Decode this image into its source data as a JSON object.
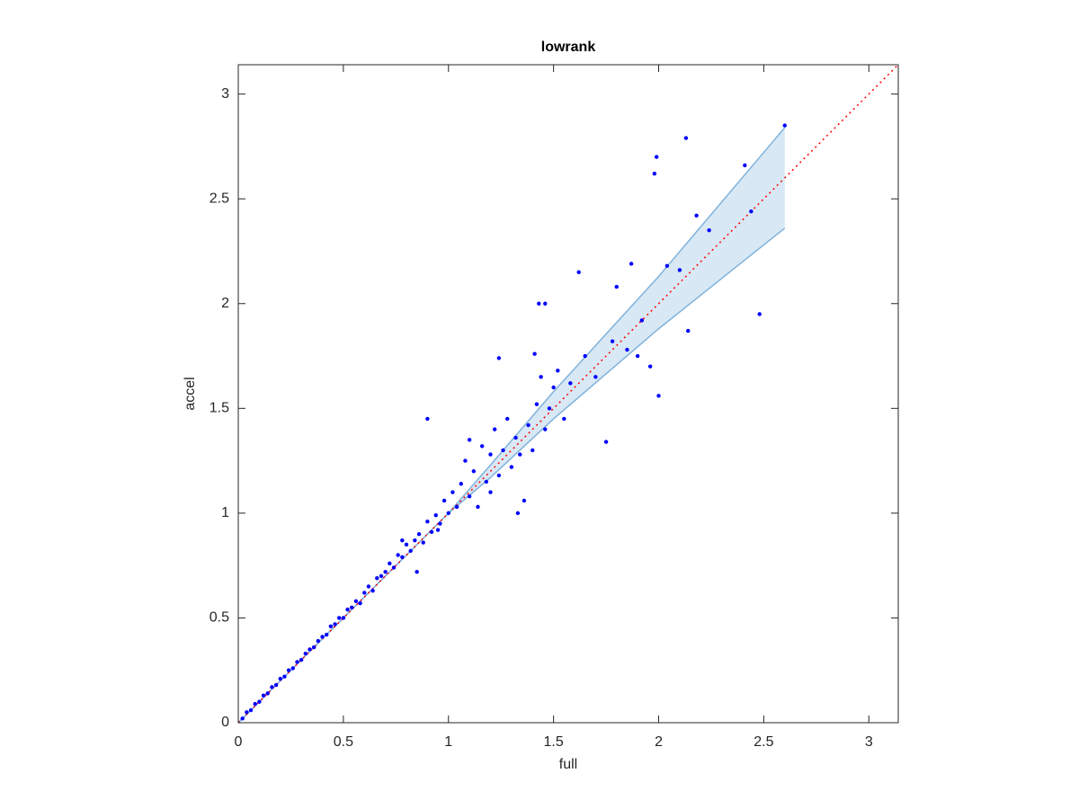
{
  "chart_data": {
    "type": "scatter",
    "title": "lowrank",
    "xlabel": "full",
    "ylabel": "accel",
    "xlim": [
      0,
      3.14
    ],
    "ylim": [
      0,
      3.14
    ],
    "xticks": [
      0,
      0.5,
      1,
      1.5,
      2,
      2.5,
      3
    ],
    "yticks": [
      0,
      0.5,
      1,
      1.5,
      2,
      2.5,
      3
    ],
    "color": "#0000ff",
    "x": [
      0.02,
      0.04,
      0.06,
      0.08,
      0.1,
      0.12,
      0.14,
      0.16,
      0.18,
      0.2,
      0.22,
      0.24,
      0.26,
      0.28,
      0.3,
      0.32,
      0.34,
      0.36,
      0.38,
      0.4,
      0.42,
      0.44,
      0.46,
      0.48,
      0.5,
      0.52,
      0.54,
      0.56,
      0.58,
      0.6,
      0.62,
      0.64,
      0.66,
      0.68,
      0.7,
      0.72,
      0.74,
      0.76,
      0.78,
      0.8,
      0.82,
      0.84,
      0.86,
      0.88,
      0.9,
      0.92,
      0.94,
      0.96,
      0.98,
      1.0,
      1.02,
      1.04,
      1.06,
      1.08,
      1.1,
      1.12,
      1.14,
      1.16,
      1.18,
      1.2,
      1.22,
      1.24,
      1.26,
      1.28,
      1.3,
      1.32,
      1.34,
      1.36,
      1.38,
      1.4,
      1.42,
      1.44,
      1.46,
      1.48,
      1.5,
      1.52,
      1.55,
      1.58,
      1.62,
      1.65,
      1.7,
      1.75,
      1.78,
      1.8,
      1.85,
      1.87,
      1.9,
      1.92,
      1.96,
      1.98,
      2.0,
      2.04,
      2.1,
      2.13,
      2.14,
      2.18,
      2.24,
      2.41,
      2.44,
      2.48,
      2.6,
      0.9,
      1.24,
      1.43,
      1.99,
      1.46,
      1.41,
      0.85,
      0.95,
      0.78,
      1.1,
      1.2,
      1.33
    ],
    "values": [
      0.02,
      0.05,
      0.06,
      0.09,
      0.1,
      0.13,
      0.14,
      0.17,
      0.18,
      0.21,
      0.22,
      0.25,
      0.26,
      0.29,
      0.3,
      0.33,
      0.35,
      0.36,
      0.39,
      0.41,
      0.42,
      0.46,
      0.47,
      0.5,
      0.5,
      0.54,
      0.55,
      0.58,
      0.57,
      0.62,
      0.65,
      0.63,
      0.69,
      0.7,
      0.72,
      0.76,
      0.74,
      0.8,
      0.79,
      0.85,
      0.82,
      0.87,
      0.9,
      0.86,
      0.96,
      0.91,
      0.99,
      0.95,
      1.06,
      1.0,
      1.1,
      1.03,
      1.14,
      1.25,
      1.08,
      1.2,
      1.03,
      1.32,
      1.15,
      1.28,
      1.4,
      1.18,
      1.3,
      1.45,
      1.22,
      1.36,
      1.28,
      1.06,
      1.42,
      1.3,
      1.52,
      1.65,
      1.4,
      1.5,
      1.6,
      1.68,
      1.45,
      1.62,
      2.15,
      1.75,
      1.65,
      1.34,
      1.82,
      2.08,
      1.78,
      2.19,
      1.75,
      1.92,
      1.7,
      2.62,
      1.56,
      2.18,
      2.16,
      2.79,
      1.87,
      2.42,
      2.35,
      2.66,
      2.44,
      1.95,
      2.85,
      1.45,
      1.74,
      2.0,
      2.7,
      2.0,
      1.76,
      0.72,
      0.92,
      0.87,
      1.35,
      1.1,
      1.0
    ],
    "band": {
      "x": [
        0,
        0.5,
        1.0,
        1.2,
        1.5,
        2.0,
        2.6
      ],
      "upper": [
        0,
        0.5,
        1.0,
        1.23,
        1.58,
        2.13,
        2.84
      ],
      "lower": [
        0,
        0.5,
        1.0,
        1.17,
        1.45,
        1.88,
        2.36
      ],
      "color": "#7fb2dc"
    },
    "reference_line": {
      "x": [
        0,
        3.14
      ],
      "y": [
        0,
        3.14
      ],
      "color": "#ff0000"
    }
  }
}
